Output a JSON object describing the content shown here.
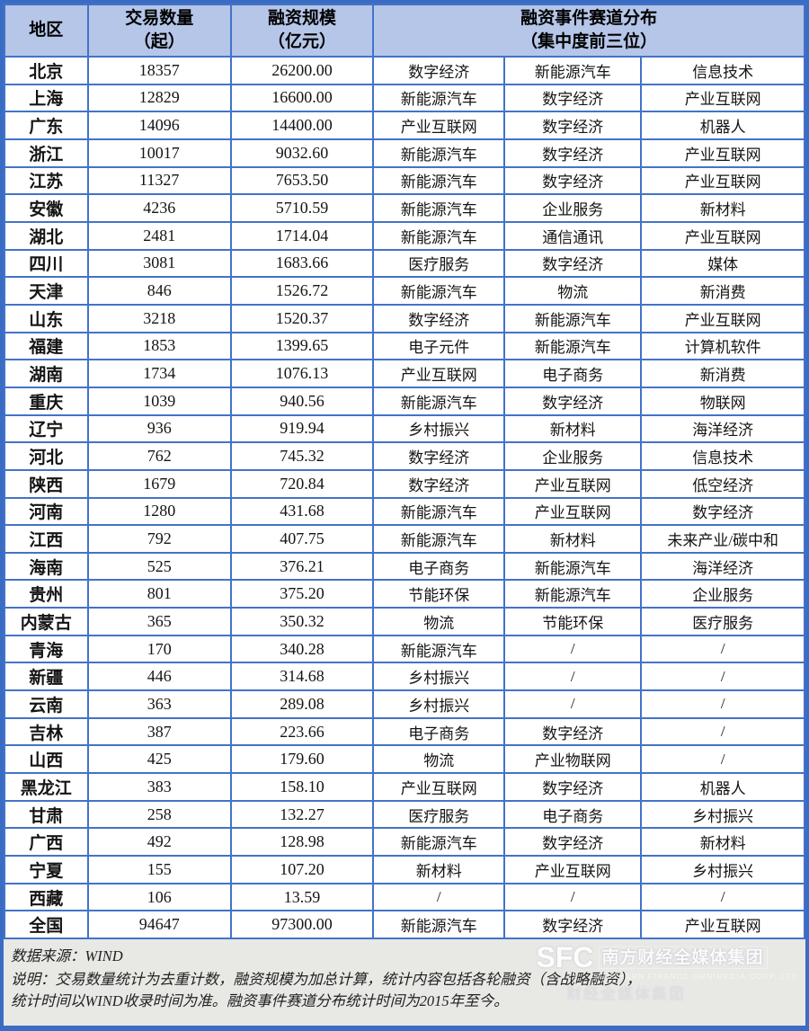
{
  "chart_data": {
    "type": "table",
    "title": "",
    "columns": [
      "地区",
      "交易数量（起）",
      "融资规模（亿元）",
      "融资事件赛道分布（集中度前三位）"
    ],
    "rows": [
      {
        "region": "北京",
        "deals": "18357",
        "scale": "26200.00",
        "tracks": [
          "数字经济",
          "新能源汽车",
          "信息技术"
        ]
      },
      {
        "region": "上海",
        "deals": "12829",
        "scale": "16600.00",
        "tracks": [
          "新能源汽车",
          "数字经济",
          "产业互联网"
        ]
      },
      {
        "region": "广东",
        "deals": "14096",
        "scale": "14400.00",
        "tracks": [
          "产业互联网",
          "数字经济",
          "机器人"
        ]
      },
      {
        "region": "浙江",
        "deals": "10017",
        "scale": "9032.60",
        "tracks": [
          "新能源汽车",
          "数字经济",
          "产业互联网"
        ]
      },
      {
        "region": "江苏",
        "deals": "11327",
        "scale": "7653.50",
        "tracks": [
          "新能源汽车",
          "数字经济",
          "产业互联网"
        ]
      },
      {
        "region": "安徽",
        "deals": "4236",
        "scale": "5710.59",
        "tracks": [
          "新能源汽车",
          "企业服务",
          "新材料"
        ]
      },
      {
        "region": "湖北",
        "deals": "2481",
        "scale": "1714.04",
        "tracks": [
          "新能源汽车",
          "通信通讯",
          "产业互联网"
        ]
      },
      {
        "region": "四川",
        "deals": "3081",
        "scale": "1683.66",
        "tracks": [
          "医疗服务",
          "数字经济",
          "媒体"
        ]
      },
      {
        "region": "天津",
        "deals": "846",
        "scale": "1526.72",
        "tracks": [
          "新能源汽车",
          "物流",
          "新消费"
        ]
      },
      {
        "region": "山东",
        "deals": "3218",
        "scale": "1520.37",
        "tracks": [
          "数字经济",
          "新能源汽车",
          "产业互联网"
        ]
      },
      {
        "region": "福建",
        "deals": "1853",
        "scale": "1399.65",
        "tracks": [
          "电子元件",
          "新能源汽车",
          "计算机软件"
        ]
      },
      {
        "region": "湖南",
        "deals": "1734",
        "scale": "1076.13",
        "tracks": [
          "产业互联网",
          "电子商务",
          "新消费"
        ]
      },
      {
        "region": "重庆",
        "deals": "1039",
        "scale": "940.56",
        "tracks": [
          "新能源汽车",
          "数字经济",
          "物联网"
        ]
      },
      {
        "region": "辽宁",
        "deals": "936",
        "scale": "919.94",
        "tracks": [
          "乡村振兴",
          "新材料",
          "海洋经济"
        ]
      },
      {
        "region": "河北",
        "deals": "762",
        "scale": "745.32",
        "tracks": [
          "数字经济",
          "企业服务",
          "信息技术"
        ]
      },
      {
        "region": "陕西",
        "deals": "1679",
        "scale": "720.84",
        "tracks": [
          "数字经济",
          "产业互联网",
          "低空经济"
        ]
      },
      {
        "region": "河南",
        "deals": "1280",
        "scale": "431.68",
        "tracks": [
          "新能源汽车",
          "产业互联网",
          "数字经济"
        ]
      },
      {
        "region": "江西",
        "deals": "792",
        "scale": "407.75",
        "tracks": [
          "新能源汽车",
          "新材料",
          "未来产业/碳中和"
        ]
      },
      {
        "region": "海南",
        "deals": "525",
        "scale": "376.21",
        "tracks": [
          "电子商务",
          "新能源汽车",
          "海洋经济"
        ]
      },
      {
        "region": "贵州",
        "deals": "801",
        "scale": "375.20",
        "tracks": [
          "节能环保",
          "新能源汽车",
          "企业服务"
        ]
      },
      {
        "region": "内蒙古",
        "deals": "365",
        "scale": "350.32",
        "tracks": [
          "物流",
          "节能环保",
          "医疗服务"
        ]
      },
      {
        "region": "青海",
        "deals": "170",
        "scale": "340.28",
        "tracks": [
          "新能源汽车",
          "/",
          "/"
        ]
      },
      {
        "region": "新疆",
        "deals": "446",
        "scale": "314.68",
        "tracks": [
          "乡村振兴",
          "/",
          "/"
        ]
      },
      {
        "region": "云南",
        "deals": "363",
        "scale": "289.08",
        "tracks": [
          "乡村振兴",
          "/",
          "/"
        ]
      },
      {
        "region": "吉林",
        "deals": "387",
        "scale": "223.66",
        "tracks": [
          "电子商务",
          "数字经济",
          "/"
        ]
      },
      {
        "region": "山西",
        "deals": "425",
        "scale": "179.60",
        "tracks": [
          "物流",
          "产业物联网",
          "/"
        ]
      },
      {
        "region": "黑龙江",
        "deals": "383",
        "scale": "158.10",
        "tracks": [
          "产业互联网",
          "数字经济",
          "机器人"
        ]
      },
      {
        "region": "甘肃",
        "deals": "258",
        "scale": "132.27",
        "tracks": [
          "医疗服务",
          "电子商务",
          "乡村振兴"
        ]
      },
      {
        "region": "广西",
        "deals": "492",
        "scale": "128.98",
        "tracks": [
          "新能源汽车",
          "数字经济",
          "新材料"
        ]
      },
      {
        "region": "宁夏",
        "deals": "155",
        "scale": "107.20",
        "tracks": [
          "新材料",
          "产业互联网",
          "乡村振兴"
        ]
      },
      {
        "region": "西藏",
        "deals": "106",
        "scale": "13.59",
        "tracks": [
          "/",
          "/",
          "/"
        ]
      },
      {
        "region": "全国",
        "deals": "94647",
        "scale": "97300.00",
        "tracks": [
          "新能源汽车",
          "数字经济",
          "产业互联网"
        ]
      }
    ]
  },
  "header": {
    "region": "地区",
    "deals_line1": "交易数量",
    "deals_line2": "（起）",
    "scale_line1": "融资规模",
    "scale_line2": "（亿元）",
    "tracks_line1": "融资事件赛道分布",
    "tracks_line2": "（集中度前三位）"
  },
  "footer": {
    "source": "数据来源：WIND",
    "note_line1": "说明：交易数量统计为去重计数，融资规模为加总计算，统计内容包括各轮融资（含战略融资），",
    "note_line2": "统计时间以WIND收录时间为准。融资事件赛道分布统计时间为2015年至今。",
    "logo": {
      "sfc": "SFC",
      "cn": "南方财经全媒体集团",
      "en": "SOUTHERN FINANCE OMNIMEDIA CORP.,LTD",
      "ghost": "财经全媒体集团"
    }
  },
  "colors": {
    "border_blue": "#4273c9",
    "outer_border_blue": "#3a6cc4",
    "header_bg": "#b6c6e8",
    "footer_bg": "#e8e8e5"
  }
}
